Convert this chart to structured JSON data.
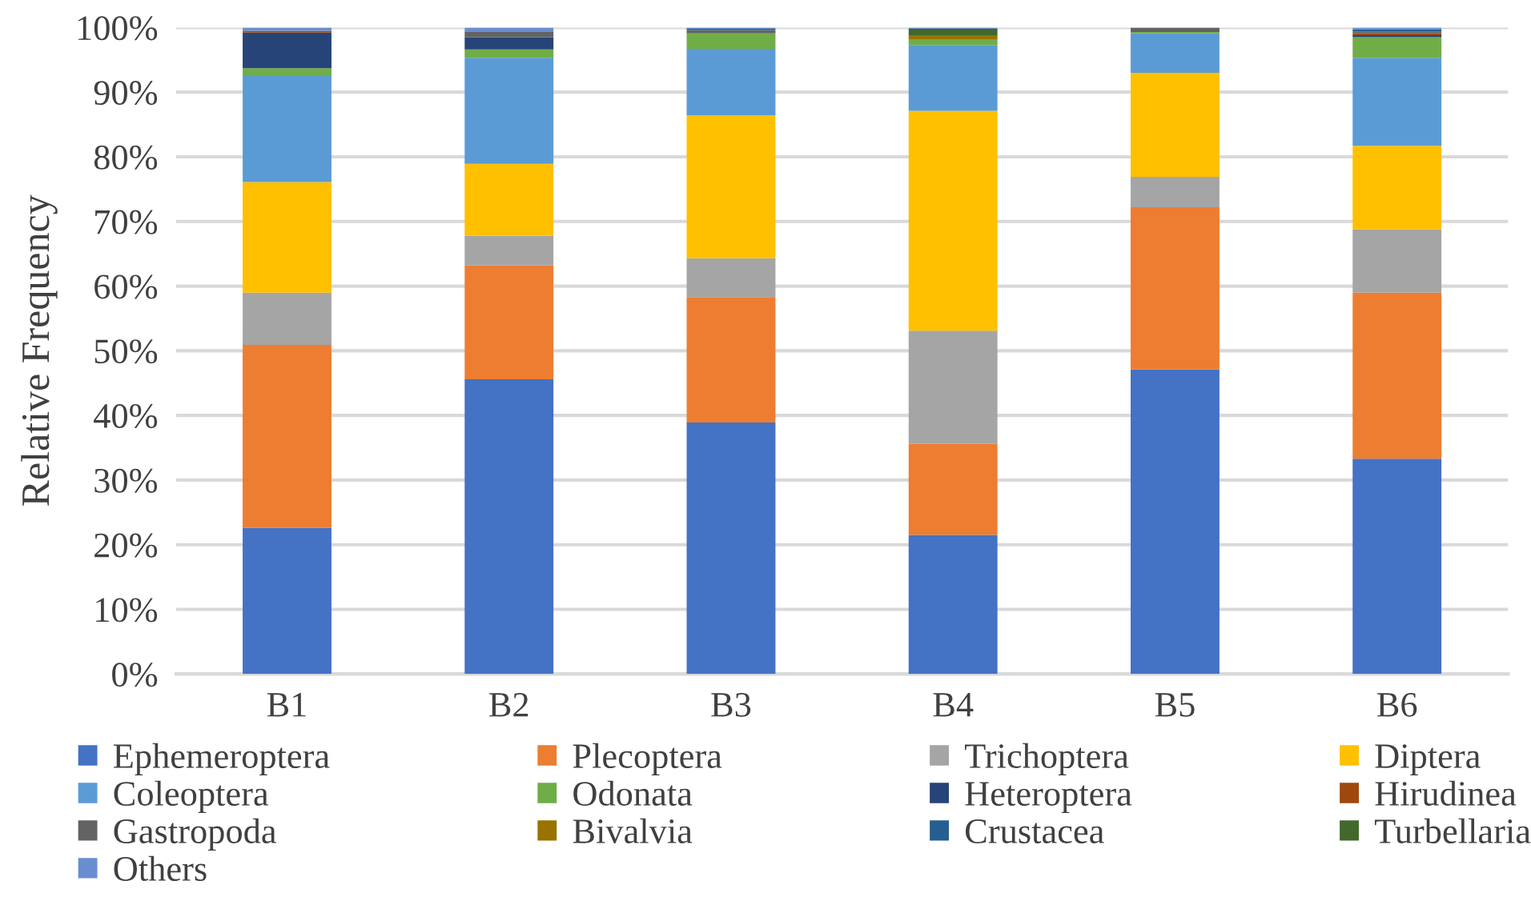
{
  "chart_data": {
    "type": "bar",
    "stacked": true,
    "ylabel": "Relative Frequency",
    "categories": [
      "B1",
      "B2",
      "B3",
      "B4",
      "B5",
      "B6"
    ],
    "series": [
      {
        "name": "Ephemeroptera",
        "color": "#4472c4",
        "values": [
          22.6,
          45.6,
          38.9,
          21.5,
          47.1,
          33.3
        ]
      },
      {
        "name": "Plecoptera",
        "color": "#ed7d31",
        "values": [
          28.3,
          17.6,
          19.4,
          14.1,
          25.1,
          25.7
        ]
      },
      {
        "name": "Trichoptera",
        "color": "#a5a5a5",
        "values": [
          8.1,
          4.6,
          6.0,
          17.5,
          4.7,
          9.8
        ]
      },
      {
        "name": "Diptera",
        "color": "#ffc000",
        "values": [
          17.1,
          11.1,
          22.1,
          34.0,
          16.1,
          12.9
        ]
      },
      {
        "name": "Coleoptera",
        "color": "#5b9bd5",
        "values": [
          16.4,
          16.4,
          10.3,
          10.2,
          6.1,
          13.6
        ]
      },
      {
        "name": "Odonata",
        "color": "#70ad47",
        "values": [
          1.2,
          1.3,
          2.4,
          0.9,
          0.2,
          3.2
        ]
      },
      {
        "name": "Heteroptera",
        "color": "#264478",
        "values": [
          5.5,
          1.9,
          0,
          0,
          0,
          0.3
        ]
      },
      {
        "name": "Hirudinea",
        "color": "#9e480e",
        "values": [
          0.3,
          0,
          0,
          0,
          0,
          0.3
        ]
      },
      {
        "name": "Gastropoda",
        "color": "#636363",
        "values": [
          0,
          0.8,
          0.5,
          0,
          0.7,
          0.3
        ]
      },
      {
        "name": "Bivalvia",
        "color": "#997300",
        "values": [
          0,
          0,
          0,
          0.6,
          0,
          0
        ]
      },
      {
        "name": "Crustacea",
        "color": "#255e91",
        "values": [
          0,
          0,
          0.2,
          0,
          0,
          0.3
        ]
      },
      {
        "name": "Turbellaria",
        "color": "#43682b",
        "values": [
          0,
          0,
          0,
          1.0,
          0,
          0
        ]
      },
      {
        "name": "Others",
        "color": "#698ed0",
        "values": [
          0.5,
          0.7,
          0.2,
          0.2,
          0,
          0.3
        ]
      }
    ],
    "ylim": [
      0,
      100
    ],
    "yticks": [
      {
        "value": 0,
        "label": "0%"
      },
      {
        "value": 10,
        "label": "10%"
      },
      {
        "value": 20,
        "label": "20%"
      },
      {
        "value": 30,
        "label": "30%"
      },
      {
        "value": 40,
        "label": "40%"
      },
      {
        "value": 50,
        "label": "50%"
      },
      {
        "value": 60,
        "label": "60%"
      },
      {
        "value": 70,
        "label": "70%"
      },
      {
        "value": 80,
        "label": "80%"
      },
      {
        "value": 90,
        "label": "90%"
      },
      {
        "value": 100,
        "label": "100%"
      }
    ],
    "grid": "y",
    "legend": "bottom"
  }
}
